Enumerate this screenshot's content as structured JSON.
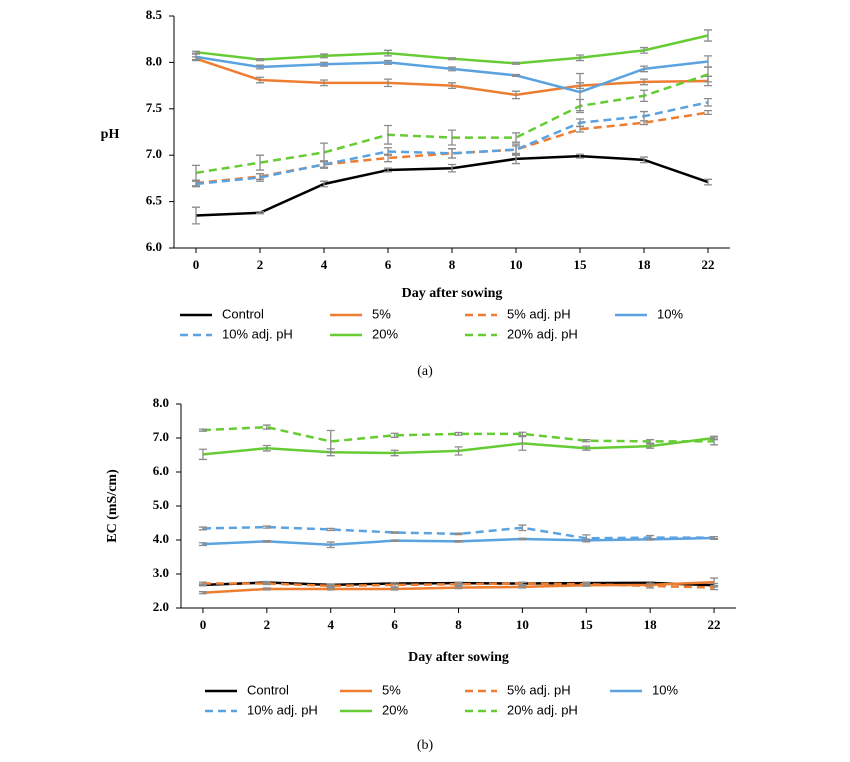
{
  "chart_data": [
    {
      "type": "line",
      "caption": "(a)",
      "x_label": "Day after sowing",
      "y_label": "pH",
      "categories": [
        "0",
        "2",
        "4",
        "6",
        "8",
        "10",
        "15",
        "18",
        "22"
      ],
      "ylim": [
        6.0,
        8.5
      ],
      "yticks": [
        {
          "value": 6,
          "label": "6.0"
        },
        6.5,
        {
          "value": 7,
          "label": "7.0"
        },
        7.5,
        {
          "value": 8,
          "label": "8.0"
        },
        8.5
      ],
      "grid": false,
      "legend": "bottom",
      "error_color": "#8c8c8c",
      "series": [
        {
          "name": "Control",
          "color": "#000000",
          "dash": false,
          "values": [
            6.35,
            6.38,
            6.69,
            6.84,
            6.86,
            6.96,
            6.99,
            6.95,
            6.71
          ],
          "errors": [
            0.09,
            0.01,
            0.03,
            0.02,
            0.04,
            0.05,
            0.02,
            0.03,
            0.03
          ]
        },
        {
          "name": "5%",
          "color": "#ed7d31",
          "dash": false,
          "values": [
            8.04,
            7.81,
            7.78,
            7.78,
            7.75,
            7.65,
            7.75,
            7.79,
            7.8
          ],
          "errors": [
            0.02,
            0.03,
            0.03,
            0.04,
            0.03,
            0.04,
            0.03,
            0.03,
            0.05
          ]
        },
        {
          "name": "5% adj. pH",
          "color": "#ed7d31",
          "dash": true,
          "values": [
            6.7,
            6.77,
            6.9,
            6.97,
            7.02,
            7.06,
            7.28,
            7.35,
            7.46
          ],
          "errors": [
            0.03,
            0.03,
            0.03,
            0.04,
            0.05,
            0.04,
            0.03,
            0.02,
            0.02
          ]
        },
        {
          "name": "10%",
          "color": "#5ba3e0",
          "dash": false,
          "values": [
            8.06,
            7.95,
            7.98,
            8.0,
            7.93,
            7.86,
            7.68,
            7.93,
            8.01
          ],
          "errors": [
            0.03,
            0.02,
            0.02,
            0.02,
            0.02,
            0.01,
            0.2,
            0.03,
            0.06
          ]
        },
        {
          "name": "10% adj. pH",
          "color": "#5ba3e0",
          "dash": true,
          "values": [
            6.69,
            6.76,
            6.9,
            7.04,
            7.02,
            7.06,
            7.35,
            7.42,
            7.57
          ],
          "errors": [
            0.03,
            0.04,
            0.04,
            0.04,
            0.05,
            0.06,
            0.04,
            0.05,
            0.04
          ]
        },
        {
          "name": "20%",
          "color": "#66cc33",
          "dash": false,
          "values": [
            8.11,
            8.03,
            8.07,
            8.1,
            8.04,
            7.99,
            8.05,
            8.13,
            8.29
          ],
          "errors": [
            0.01,
            0.01,
            0.02,
            0.03,
            0.01,
            0.01,
            0.03,
            0.03,
            0.06
          ]
        },
        {
          "name": "20% adj. pH",
          "color": "#66cc33",
          "dash": true,
          "values": [
            6.81,
            6.92,
            7.03,
            7.22,
            7.19,
            7.19,
            7.53,
            7.64,
            7.87
          ],
          "errors": [
            0.08,
            0.08,
            0.1,
            0.1,
            0.08,
            0.05,
            0.07,
            0.06,
            0.08
          ]
        }
      ]
    },
    {
      "type": "line",
      "caption": "(b)",
      "x_label": "Day after sowing",
      "y_label": "EC (mS/cm)",
      "categories": [
        "0",
        "2",
        "4",
        "6",
        "8",
        "10",
        "15",
        "18",
        "22"
      ],
      "ylim": [
        2.0,
        8.0
      ],
      "yticks": [
        {
          "value": 2,
          "label": "2.0"
        },
        {
          "value": 3,
          "label": "3.0"
        },
        {
          "value": 4,
          "label": "4.0"
        },
        {
          "value": 5,
          "label": "5.0"
        },
        {
          "value": 6,
          "label": "6.0"
        },
        {
          "value": 7,
          "label": "7.0"
        },
        {
          "value": 8,
          "label": "8.0"
        }
      ],
      "grid": false,
      "legend": "bottom",
      "error_color": "#8c8c8c",
      "series": [
        {
          "name": "Control",
          "color": "#000000",
          "dash": false,
          "values": [
            2.68,
            2.75,
            2.68,
            2.72,
            2.73,
            2.72,
            2.73,
            2.74,
            2.67
          ],
          "errors": [
            0.03,
            0.03,
            0.03,
            0.03,
            0.03,
            0.03,
            0.03,
            0.03,
            0.05
          ]
        },
        {
          "name": "5%",
          "color": "#ed7d31",
          "dash": false,
          "values": [
            2.45,
            2.56,
            2.56,
            2.56,
            2.6,
            2.62,
            2.67,
            2.68,
            2.76
          ],
          "errors": [
            0.03,
            0.03,
            0.03,
            0.03,
            0.03,
            0.03,
            0.03,
            0.03,
            0.12
          ]
        },
        {
          "name": "5% adj. pH",
          "color": "#ed7d31",
          "dash": true,
          "values": [
            2.72,
            2.72,
            2.65,
            2.68,
            2.7,
            2.72,
            2.7,
            2.65,
            2.6
          ],
          "errors": [
            0.04,
            0.03,
            0.03,
            0.06,
            0.04,
            0.04,
            0.03,
            0.06,
            0.06
          ]
        },
        {
          "name": "10%",
          "color": "#5ba3e0",
          "dash": false,
          "values": [
            3.88,
            3.96,
            3.86,
            3.98,
            3.96,
            4.03,
            3.99,
            4.02,
            4.06
          ],
          "errors": [
            0.04,
            0.02,
            0.08,
            0.02,
            0.02,
            0.02,
            0.04,
            0.02,
            0.04
          ]
        },
        {
          "name": "10% adj. pH",
          "color": "#5ba3e0",
          "dash": true,
          "values": [
            4.34,
            4.38,
            4.31,
            4.22,
            4.18,
            4.36,
            4.05,
            4.07,
            4.07
          ],
          "errors": [
            0.04,
            0.03,
            0.03,
            0.02,
            0.02,
            0.08,
            0.1,
            0.06,
            0.03
          ]
        },
        {
          "name": "20%",
          "color": "#66cc33",
          "dash": false,
          "values": [
            6.52,
            6.7,
            6.58,
            6.56,
            6.62,
            6.84,
            6.7,
            6.76,
            7.0
          ],
          "errors": [
            0.15,
            0.08,
            0.1,
            0.08,
            0.12,
            0.2,
            0.06,
            0.06,
            0.05
          ]
        },
        {
          "name": "20% adj. pH",
          "color": "#66cc33",
          "dash": true,
          "values": [
            7.23,
            7.32,
            6.9,
            7.08,
            7.12,
            7.12,
            6.92,
            6.9,
            6.9
          ],
          "errors": [
            0.03,
            0.06,
            0.32,
            0.06,
            0.04,
            0.05,
            0.03,
            0.05,
            0.1
          ]
        }
      ]
    }
  ]
}
